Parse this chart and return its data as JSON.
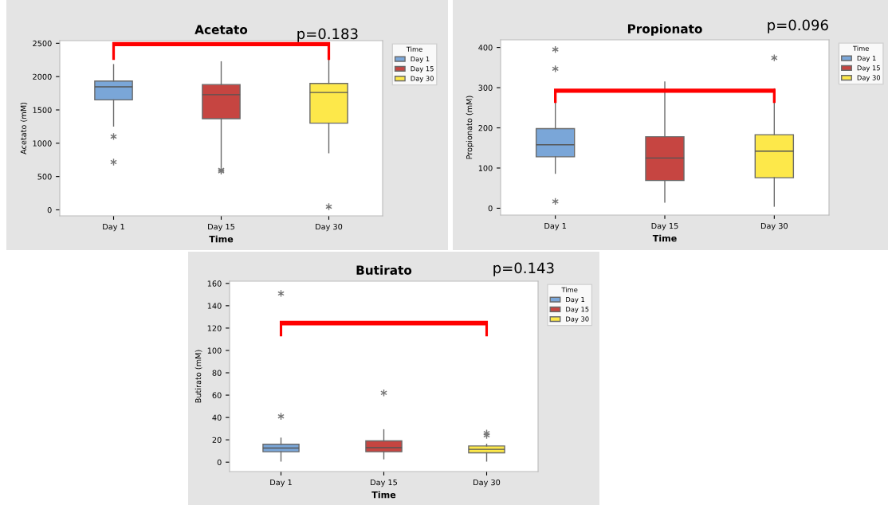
{
  "chart_data": [
    {
      "type": "box",
      "title": "Acetato",
      "xlabel": "Time",
      "ylabel": "Acetato (mM)",
      "legend_title": "Time",
      "legend": "right",
      "annotations": [
        "p=0.183"
      ],
      "categories": [
        "Day 1",
        "Day 15",
        "Day 30"
      ],
      "ylim": [
        -90,
        2540
      ],
      "yticks": [
        0,
        500,
        1000,
        1500,
        2000,
        2500
      ],
      "grid": false,
      "marker": "star",
      "series": [
        {
          "name": "Day 1",
          "color": "#7aa6d8",
          "boxes": [
            {
              "low": 1258,
              "q1": 1651,
              "median": 1847,
              "q3": 1933,
              "high": 2180,
              "outliers": [
                1100,
                717
              ]
            },
            null,
            null
          ]
        },
        {
          "name": "Day 15",
          "color": "#c64541",
          "boxes": [
            null,
            {
              "low": 653,
              "q1": 1369,
              "median": 1728,
              "q3": 1881,
              "high": 2222,
              "outliers": [
                600,
                580
              ]
            },
            null
          ]
        },
        {
          "name": "Day 30",
          "color": "#fde84a",
          "boxes": [
            null,
            null,
            {
              "low": 857,
              "q1": 1301,
              "median": 1762,
              "q3": 1898,
              "high": 2261,
              "outliers": [
                47
              ]
            }
          ]
        }
      ]
    },
    {
      "type": "box",
      "title": "Propionato",
      "xlabel": "Time",
      "ylabel": "Propionato (mM)",
      "legend_title": "Time",
      "legend": "right",
      "annotations": [
        "p=0.096"
      ],
      "categories": [
        "Day 1",
        "Day 15",
        "Day 30"
      ],
      "ylim": [
        -17,
        419
      ],
      "yticks": [
        0,
        100,
        200,
        300,
        400
      ],
      "grid": false,
      "marker": "star",
      "series": [
        {
          "name": "Day 1",
          "color": "#7aa6d8",
          "boxes": [
            {
              "low": 87,
              "q1": 128,
              "median": 158,
              "q3": 198,
              "high": 274,
              "outliers": [
                395,
                347,
                17
              ]
            },
            null,
            null
          ]
        },
        {
          "name": "Day 15",
          "color": "#c64541",
          "boxes": [
            null,
            {
              "low": 15,
              "q1": 69,
              "median": 125,
              "q3": 178,
              "high": 314
            },
            null
          ]
        },
        {
          "name": "Day 30",
          "color": "#fde84a",
          "boxes": [
            null,
            null,
            {
              "low": 5,
              "q1": 76,
              "median": 142,
              "q3": 183,
              "high": 297,
              "outliers": [
                374
              ]
            }
          ]
        }
      ]
    },
    {
      "type": "box",
      "title": "Butirato",
      "xlabel": "Time",
      "ylabel": "Butirato (mM)",
      "legend_title": "Time",
      "legend": "right",
      "annotations": [
        "p=0.143"
      ],
      "categories": [
        "Day 1",
        "Day 15",
        "Day 30"
      ],
      "ylim": [
        -8.4,
        162
      ],
      "yticks": [
        0,
        20,
        40,
        60,
        80,
        100,
        120,
        140,
        160
      ],
      "grid": false,
      "marker": "star",
      "series": [
        {
          "name": "Day 1",
          "color": "#7aa6d8",
          "boxes": [
            {
              "low": 1,
              "q1": 9.3,
              "median": 12.6,
              "q3": 16,
              "high": 21.5,
              "outliers": [
                151,
                41
              ]
            },
            null,
            null
          ]
        },
        {
          "name": "Day 15",
          "color": "#c64541",
          "boxes": [
            null,
            {
              "low": 3,
              "q1": 9.3,
              "median": 13,
              "q3": 19,
              "high": 29,
              "outliers": [
                62
              ]
            },
            null
          ]
        },
        {
          "name": "Day 30",
          "color": "#fde84a",
          "boxes": [
            null,
            null,
            {
              "low": 1,
              "q1": 8.4,
              "median": 11.5,
              "q3": 14.5,
              "high": 16,
              "outliers": [
                26,
                24
              ]
            }
          ]
        }
      ]
    }
  ]
}
